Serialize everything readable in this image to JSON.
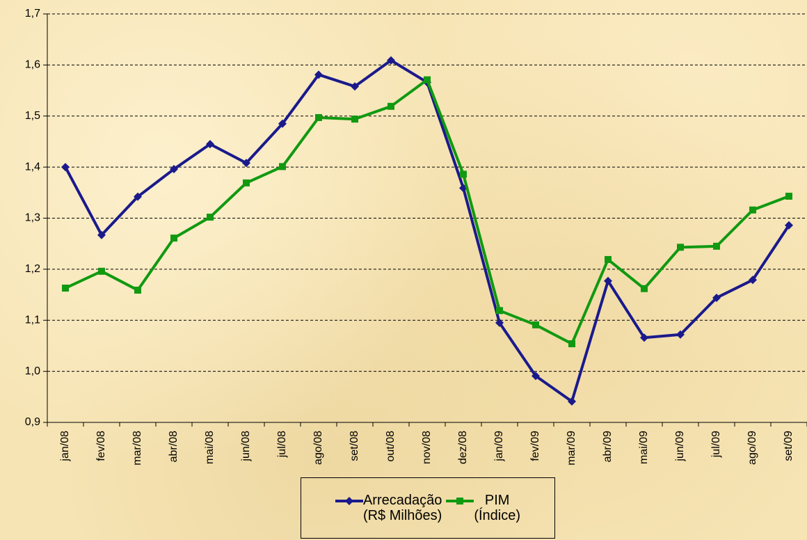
{
  "chart_data": {
    "type": "line",
    "categories": [
      "jan/08",
      "fev/08",
      "mar/08",
      "abr/08",
      "mai/08",
      "jun/08",
      "jul/08",
      "ago/08",
      "set/08",
      "out/08",
      "nov/08",
      "dez/08",
      "jan/09",
      "fev/09",
      "mar/09",
      "abr/09",
      "mai/09",
      "jun/09",
      "jul/09",
      "ago/09",
      "set/09"
    ],
    "series": [
      {
        "name": "Arrecadação\n(R$ Milhões)",
        "color": "#1a1a8c",
        "marker": "diamond",
        "values": [
          1.4,
          1.267,
          1.342,
          1.396,
          1.445,
          1.408,
          1.485,
          1.581,
          1.558,
          1.609,
          1.566,
          1.359,
          1.095,
          0.991,
          0.941,
          1.177,
          1.066,
          1.072,
          1.144,
          1.179,
          1.286
        ]
      },
      {
        "name": "PIM\n(Índice)",
        "color": "#119911",
        "marker": "square",
        "values": [
          1.163,
          1.196,
          1.159,
          1.261,
          1.302,
          1.369,
          1.401,
          1.497,
          1.494,
          1.519,
          1.571,
          1.386,
          1.119,
          1.091,
          1.054,
          1.219,
          1.162,
          1.243,
          1.245,
          1.316,
          1.343
        ]
      }
    ],
    "ylim": [
      0.9,
      1.7
    ],
    "yticks": [
      {
        "value": 0.9,
        "label": "0,9"
      },
      {
        "value": 1.0,
        "label": "1,0"
      },
      {
        "value": 1.1,
        "label": "1,1"
      },
      {
        "value": 1.2,
        "label": "1,2"
      },
      {
        "value": 1.3,
        "label": "1,3"
      },
      {
        "value": 1.4,
        "label": "1,4"
      },
      {
        "value": 1.5,
        "label": "1,5"
      },
      {
        "value": 1.6,
        "label": "1,6"
      },
      {
        "value": 1.7,
        "label": "1,7"
      }
    ],
    "grid": true,
    "legend": "bottom"
  }
}
